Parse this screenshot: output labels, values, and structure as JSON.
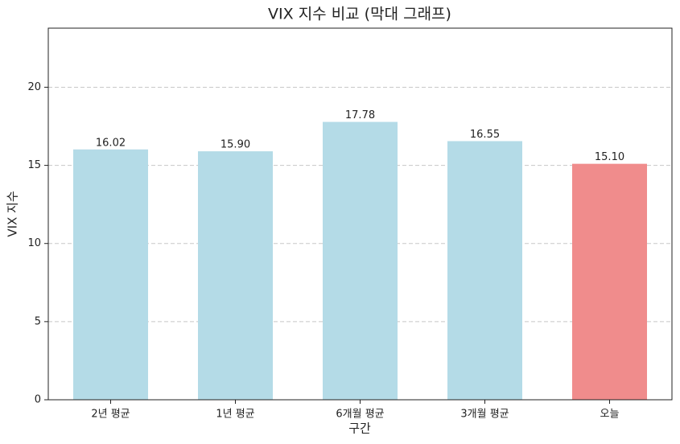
{
  "chart_data": {
    "type": "bar",
    "title": "VIX 지수 비교 (막대 그래프)",
    "x_label": "구간",
    "y_label": "VIX 지수",
    "categories": [
      "2년 평균",
      "1년 평균",
      "6개월 평균",
      "3개월 평균",
      "오늘"
    ],
    "values": [
      16.02,
      15.9,
      17.78,
      16.55,
      15.1
    ],
    "value_labels": [
      "16.02",
      "15.90",
      "17.78",
      "16.55",
      "15.10"
    ],
    "colors": [
      "#b4dbe7",
      "#b4dbe7",
      "#b4dbe7",
      "#b4dbe7",
      "#f08c8c"
    ],
    "ylim": [
      0,
      23.78
    ],
    "yticks": [
      0,
      5,
      10,
      15,
      20
    ],
    "grid": true
  }
}
